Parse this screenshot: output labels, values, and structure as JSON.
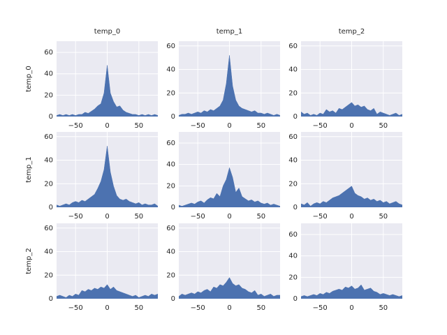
{
  "chart_data": [
    {
      "type": "area",
      "title": "temp_0",
      "ylabel": "temp_0",
      "color": "#4c72b0",
      "grid": true,
      "x": [
        -80,
        -75,
        -70,
        -65,
        -60,
        -55,
        -50,
        -45,
        -40,
        -35,
        -30,
        -25,
        -20,
        -15,
        -10,
        -5,
        0,
        5,
        10,
        15,
        20,
        25,
        30,
        35,
        40,
        45,
        50,
        55,
        60,
        65,
        70,
        75,
        80
      ],
      "values": [
        1,
        2,
        1,
        2,
        1,
        2,
        1,
        2,
        2,
        4,
        3,
        5,
        7,
        10,
        12,
        22,
        48,
        22,
        14,
        9,
        10,
        6,
        4,
        3,
        2,
        2,
        1,
        2,
        1,
        2,
        1,
        2,
        1
      ],
      "xlim": [
        -80,
        80
      ],
      "ylim": [
        0,
        70.5
      ],
      "xticks": [
        {
          "value": -50,
          "label": "−50"
        },
        0,
        50
      ],
      "yticks": [
        0,
        20,
        40,
        60
      ]
    },
    {
      "type": "area",
      "title": "temp_1",
      "color": "#4c72b0",
      "grid": true,
      "x": [
        -80,
        -75,
        -70,
        -65,
        -60,
        -55,
        -50,
        -45,
        -40,
        -35,
        -30,
        -25,
        -20,
        -15,
        -10,
        -5,
        0,
        5,
        10,
        15,
        20,
        25,
        30,
        35,
        40,
        45,
        50,
        55,
        60,
        65,
        70,
        75,
        80
      ],
      "values": [
        1,
        2,
        2,
        3,
        2,
        3,
        4,
        3,
        5,
        4,
        6,
        5,
        7,
        9,
        14,
        28,
        52,
        26,
        14,
        9,
        7,
        6,
        5,
        4,
        5,
        3,
        3,
        2,
        3,
        2,
        1,
        2,
        1
      ],
      "xlim": [
        -80,
        80
      ],
      "ylim": [
        0,
        64
      ],
      "xticks": [
        {
          "value": -50,
          "label": "−50"
        },
        0,
        50
      ],
      "yticks": [
        0,
        20,
        40,
        60
      ]
    },
    {
      "type": "area",
      "title": "temp_2",
      "color": "#4c72b0",
      "grid": true,
      "x": [
        -80,
        -75,
        -70,
        -65,
        -60,
        -55,
        -50,
        -45,
        -40,
        -35,
        -30,
        -25,
        -20,
        -15,
        -10,
        -5,
        0,
        5,
        10,
        15,
        20,
        25,
        30,
        35,
        40,
        45,
        50,
        55,
        60,
        65,
        70,
        75,
        80
      ],
      "values": [
        4,
        2,
        3,
        1,
        2,
        1,
        3,
        2,
        6,
        4,
        5,
        3,
        7,
        6,
        8,
        10,
        12,
        9,
        10,
        8,
        9,
        6,
        5,
        7,
        2,
        4,
        3,
        2,
        1,
        2,
        3,
        1,
        2
      ],
      "xlim": [
        -80,
        80
      ],
      "ylim": [
        0,
        64
      ],
      "xticks": [
        {
          "value": -50,
          "label": "−50"
        },
        0,
        50
      ],
      "yticks": [
        0,
        20,
        40,
        60
      ]
    },
    {
      "type": "area",
      "ylabel": "temp_1",
      "color": "#4c72b0",
      "grid": true,
      "x": [
        -80,
        -75,
        -70,
        -65,
        -60,
        -55,
        -50,
        -45,
        -40,
        -35,
        -30,
        -25,
        -20,
        -15,
        -10,
        -5,
        0,
        5,
        10,
        15,
        20,
        25,
        30,
        35,
        40,
        45,
        50,
        55,
        60,
        65,
        70,
        75,
        80
      ],
      "values": [
        2,
        1,
        2,
        3,
        2,
        4,
        5,
        4,
        6,
        5,
        7,
        9,
        11,
        16,
        22,
        32,
        52,
        30,
        18,
        10,
        7,
        6,
        7,
        5,
        4,
        3,
        4,
        2,
        3,
        2,
        2,
        3,
        1
      ],
      "xlim": [
        -80,
        80
      ],
      "ylim": [
        0,
        64
      ],
      "xticks": [
        {
          "value": -50,
          "label": "−50"
        },
        0,
        50
      ],
      "yticks": [
        0,
        20,
        40,
        60
      ]
    },
    {
      "type": "area",
      "color": "#4c72b0",
      "grid": true,
      "x": [
        -80,
        -75,
        -70,
        -65,
        -60,
        -55,
        -50,
        -45,
        -40,
        -35,
        -30,
        -25,
        -20,
        -15,
        -10,
        -5,
        0,
        5,
        10,
        15,
        20,
        25,
        30,
        35,
        40,
        45,
        50,
        55,
        60,
        65,
        70,
        75,
        80
      ],
      "values": [
        2,
        1,
        2,
        3,
        4,
        3,
        5,
        6,
        4,
        7,
        9,
        8,
        13,
        10,
        20,
        26,
        37,
        28,
        14,
        18,
        10,
        8,
        6,
        7,
        5,
        6,
        4,
        3,
        4,
        2,
        3,
        2,
        1
      ],
      "xlim": [
        -80,
        80
      ],
      "ylim": [
        0,
        70.4
      ],
      "xticks": [
        {
          "value": -50,
          "label": "−50"
        },
        0,
        50
      ],
      "yticks": [
        0,
        20,
        40,
        60
      ]
    },
    {
      "type": "area",
      "color": "#4c72b0",
      "grid": true,
      "x": [
        -80,
        -75,
        -70,
        -65,
        -60,
        -55,
        -50,
        -45,
        -40,
        -35,
        -30,
        -25,
        -20,
        -15,
        -10,
        -5,
        0,
        5,
        10,
        15,
        20,
        25,
        30,
        35,
        40,
        45,
        50,
        55,
        60,
        65,
        70,
        75,
        80
      ],
      "values": [
        3,
        2,
        4,
        1,
        3,
        4,
        3,
        5,
        4,
        6,
        8,
        9,
        10,
        12,
        14,
        16,
        18,
        12,
        10,
        9,
        7,
        8,
        6,
        7,
        5,
        6,
        4,
        5,
        3,
        4,
        5,
        3,
        2
      ],
      "xlim": [
        -80,
        80
      ],
      "ylim": [
        0,
        64
      ],
      "xticks": [
        {
          "value": -50,
          "label": "−50"
        },
        0,
        50
      ],
      "yticks": [
        0,
        20,
        40,
        60
      ]
    },
    {
      "type": "area",
      "ylabel": "temp_2",
      "color": "#4c72b0",
      "grid": true,
      "x": [
        -80,
        -75,
        -70,
        -65,
        -60,
        -55,
        -50,
        -45,
        -40,
        -35,
        -30,
        -25,
        -20,
        -15,
        -10,
        -5,
        0,
        5,
        10,
        15,
        20,
        25,
        30,
        35,
        40,
        45,
        50,
        55,
        60,
        65,
        70,
        75,
        80
      ],
      "values": [
        2,
        3,
        2,
        1,
        3,
        2,
        4,
        3,
        7,
        6,
        8,
        7,
        9,
        8,
        10,
        9,
        12,
        8,
        10,
        7,
        6,
        5,
        4,
        3,
        2,
        3,
        1,
        2,
        3,
        2,
        4,
        3,
        4
      ],
      "xlim": [
        -80,
        80
      ],
      "ylim": [
        0,
        64
      ],
      "xticks": [
        {
          "value": -50,
          "label": "−50"
        },
        0,
        50
      ],
      "yticks": [
        0,
        20,
        40,
        60
      ]
    },
    {
      "type": "area",
      "color": "#4c72b0",
      "grid": true,
      "x": [
        -80,
        -75,
        -70,
        -65,
        -60,
        -55,
        -50,
        -45,
        -40,
        -35,
        -30,
        -25,
        -20,
        -15,
        -10,
        -5,
        0,
        5,
        10,
        15,
        20,
        25,
        30,
        35,
        40,
        45,
        50,
        55,
        60,
        65,
        70,
        75,
        80
      ],
      "values": [
        2,
        4,
        3,
        4,
        5,
        4,
        6,
        5,
        7,
        8,
        6,
        10,
        9,
        12,
        11,
        14,
        18,
        13,
        11,
        12,
        9,
        8,
        6,
        5,
        7,
        3,
        4,
        2,
        3,
        4,
        2,
        3,
        3
      ],
      "xlim": [
        -80,
        80
      ],
      "ylim": [
        0,
        64
      ],
      "xticks": [
        {
          "value": -50,
          "label": "−50"
        },
        0,
        50
      ],
      "yticks": [
        0,
        20,
        40,
        60
      ]
    },
    {
      "type": "area",
      "color": "#4c72b0",
      "grid": true,
      "x": [
        -80,
        -75,
        -70,
        -65,
        -60,
        -55,
        -50,
        -45,
        -40,
        -35,
        -30,
        -25,
        -20,
        -15,
        -10,
        -5,
        0,
        5,
        10,
        15,
        20,
        25,
        30,
        35,
        40,
        45,
        50,
        55,
        60,
        65,
        70,
        75,
        80
      ],
      "values": [
        2,
        3,
        2,
        3,
        4,
        3,
        5,
        4,
        6,
        5,
        7,
        8,
        9,
        8,
        11,
        10,
        12,
        9,
        10,
        13,
        8,
        9,
        10,
        7,
        6,
        4,
        5,
        4,
        3,
        4,
        3,
        2,
        3
      ],
      "xlim": [
        -80,
        80
      ],
      "ylim": [
        0,
        70.4
      ],
      "xticks": [
        {
          "value": -50,
          "label": "−50"
        },
        0,
        50
      ],
      "yticks": [
        0,
        20,
        40,
        60
      ]
    }
  ]
}
